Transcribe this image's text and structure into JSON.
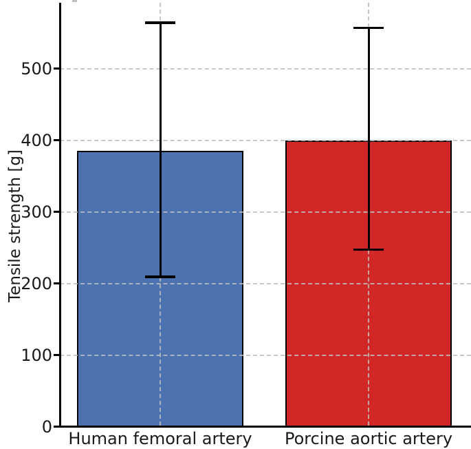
{
  "chart_data": {
    "type": "bar",
    "categories": [
      "Human femoral artery",
      "Porcine aortic artery"
    ],
    "values": [
      385,
      400
    ],
    "error_upper": [
      564,
      557
    ],
    "error_lower": [
      209,
      247
    ],
    "ylabel": "Tensile strength [g]",
    "yticks": [
      0,
      100,
      200,
      300,
      400,
      500
    ],
    "ylim": [
      0,
      592
    ],
    "bar_colors": [
      "#4c72b0",
      "#d22727"
    ],
    "bar_edge_color": "#000000",
    "error_bar_color": "#000000",
    "grid": {
      "style": "dashed",
      "color": "#c9c9c9",
      "horizontal": true,
      "vertical_at_bar_centers": true
    },
    "legend": null,
    "title": ""
  }
}
